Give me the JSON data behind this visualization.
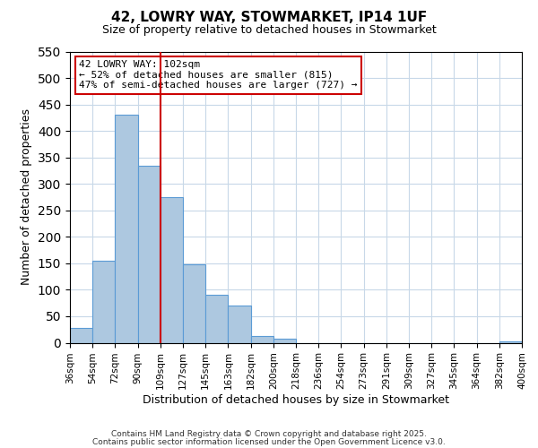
{
  "title": "42, LOWRY WAY, STOWMARKET, IP14 1UF",
  "subtitle": "Size of property relative to detached houses in Stowmarket",
  "xlabel": "Distribution of detached houses by size in Stowmarket",
  "ylabel": "Number of detached properties",
  "bar_values": [
    28,
    155,
    430,
    335,
    275,
    148,
    90,
    70,
    13,
    8,
    0,
    0,
    0,
    0,
    0,
    0,
    0,
    0,
    0,
    3
  ],
  "bin_labels": [
    "36sqm",
    "54sqm",
    "72sqm",
    "90sqm",
    "109sqm",
    "127sqm",
    "145sqm",
    "163sqm",
    "182sqm",
    "200sqm",
    "218sqm",
    "236sqm",
    "254sqm",
    "273sqm",
    "291sqm",
    "309sqm",
    "327sqm",
    "345sqm",
    "364sqm",
    "382sqm",
    "400sqm"
  ],
  "bar_color": "#adc8e0",
  "bar_edge_color": "#5b9bd5",
  "bar_edge_width": 0.8,
  "ylim": [
    0,
    550
  ],
  "yticks": [
    0,
    50,
    100,
    150,
    200,
    250,
    300,
    350,
    400,
    450,
    500,
    550
  ],
  "vline_color": "#cc0000",
  "vline_x": 3.5,
  "annotation_title": "42 LOWRY WAY: 102sqm",
  "annotation_line1": "← 52% of detached houses are smaller (815)",
  "annotation_line2": "47% of semi-detached houses are larger (727) →",
  "annotation_box_color": "#cc0000",
  "footnote1": "Contains HM Land Registry data © Crown copyright and database right 2025.",
  "footnote2": "Contains public sector information licensed under the Open Government Licence v3.0.",
  "background_color": "#ffffff",
  "grid_color": "#c8d8e8"
}
